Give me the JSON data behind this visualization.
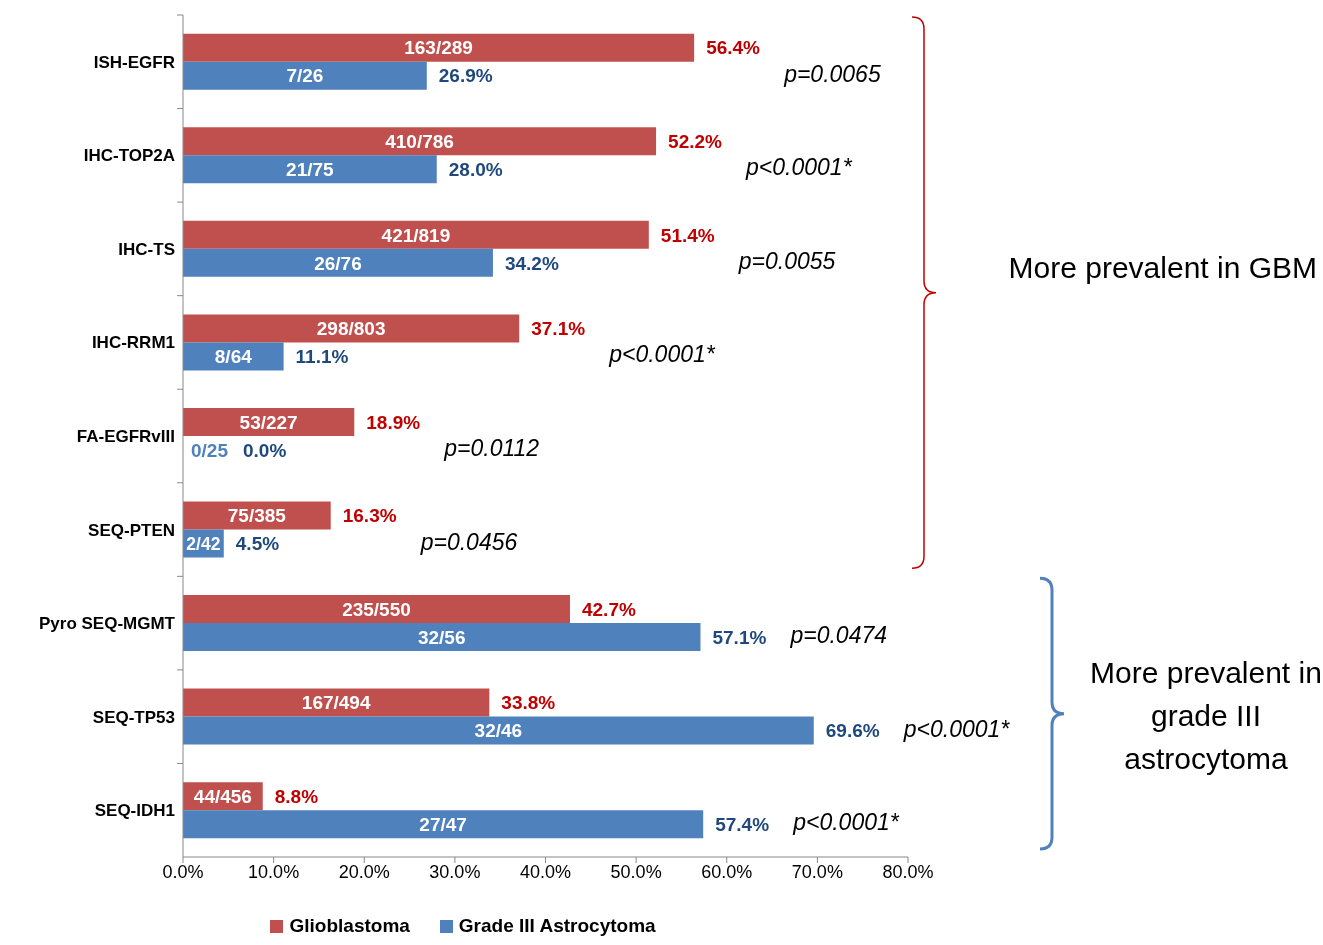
{
  "chart_data": {
    "type": "bar",
    "orientation": "horizontal",
    "categories": [
      "ISH-EGFR",
      "IHC-TOP2A",
      "IHC-TS",
      "IHC-RRM1",
      "FA-EGFRvIII",
      "SEQ-PTEN",
      "Pyro SEQ-MGMT",
      "SEQ-TP53",
      "SEQ-IDH1"
    ],
    "series": [
      {
        "name": "Glioblastoma",
        "color": "#c0504d",
        "values": [
          56.4,
          52.2,
          51.4,
          37.1,
          18.9,
          16.3,
          42.7,
          33.8,
          8.8
        ],
        "value_labels": [
          "56.4%",
          "52.2%",
          "51.4%",
          "37.1%",
          "18.9%",
          "16.3%",
          "42.7%",
          "33.8%",
          "8.8%"
        ]
      },
      {
        "name": "Grade III Astrocytoma",
        "color": "#4f81bd",
        "values": [
          26.9,
          28.0,
          34.2,
          11.1,
          0.0,
          4.5,
          57.1,
          69.6,
          57.4
        ],
        "value_labels": [
          "26.9%",
          "28.0%",
          "34.2%",
          "11.1%",
          "0.0%",
          "4.5%",
          "57.1%",
          "69.6%",
          "57.4%"
        ]
      }
    ],
    "xlim": [
      0,
      80
    ],
    "xticks": [
      {
        "value": 0,
        "label": "0.0%"
      },
      {
        "value": 10,
        "label": "10.0%"
      },
      {
        "value": 20,
        "label": "20.0%"
      },
      {
        "value": 30,
        "label": "30.0%"
      },
      {
        "value": 40,
        "label": "40.0%"
      },
      {
        "value": 50,
        "label": "50.0%"
      },
      {
        "value": 60,
        "label": "60.0%"
      },
      {
        "value": 70,
        "label": "70.0%"
      },
      {
        "value": 80,
        "label": "80.0%"
      }
    ],
    "legend": "bottom",
    "annotations": [
      "163/289",
      "7/26",
      "410/786",
      "21/75",
      "421/819",
      "26/76",
      "298/803",
      "8/64",
      "53/227",
      "0/25",
      "75/385",
      "2/42",
      "235/550",
      "32/56",
      "167/494",
      "32/46",
      "44/456",
      "27/47",
      "p=0.0065",
      "p<0.0001*",
      "p=0.0055",
      "p<0.0001*",
      "p=0.0112",
      "p=0.0456",
      "p=0.0474",
      "p<0.0001*",
      "p<0.0001*",
      "More prevalent in GBM",
      "More prevalent in grade III astrocytoma"
    ]
  }
}
